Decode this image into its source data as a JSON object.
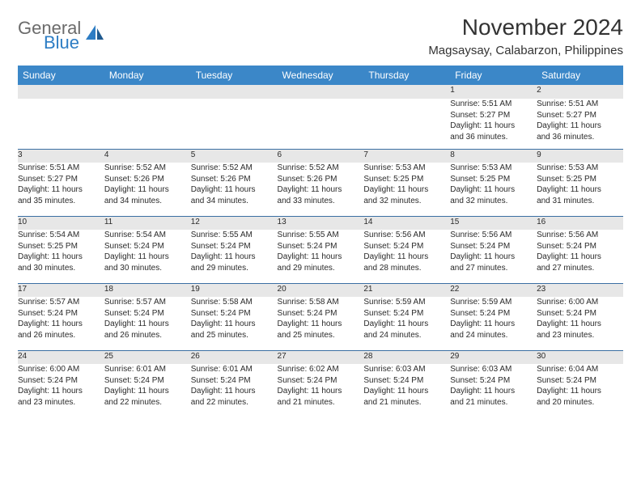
{
  "logo": {
    "line1": "General",
    "line2": "Blue"
  },
  "title": "November 2024",
  "location": "Magsaysay, Calabarzon, Philippines",
  "colors": {
    "header_bg": "#3b87c8",
    "header_text": "#ffffff",
    "daynum_bg": "#e7e7e7",
    "divider": "#3b6fa3",
    "text": "#2a2a2a",
    "logo_gray": "#6b6b6b",
    "logo_blue": "#2d7dc4"
  },
  "weekdays": [
    "Sunday",
    "Monday",
    "Tuesday",
    "Wednesday",
    "Thursday",
    "Friday",
    "Saturday"
  ],
  "weeks": [
    [
      null,
      null,
      null,
      null,
      null,
      {
        "n": "1",
        "sr": "Sunrise: 5:51 AM",
        "ss": "Sunset: 5:27 PM",
        "d1": "Daylight: 11 hours",
        "d2": "and 36 minutes."
      },
      {
        "n": "2",
        "sr": "Sunrise: 5:51 AM",
        "ss": "Sunset: 5:27 PM",
        "d1": "Daylight: 11 hours",
        "d2": "and 36 minutes."
      }
    ],
    [
      {
        "n": "3",
        "sr": "Sunrise: 5:51 AM",
        "ss": "Sunset: 5:27 PM",
        "d1": "Daylight: 11 hours",
        "d2": "and 35 minutes."
      },
      {
        "n": "4",
        "sr": "Sunrise: 5:52 AM",
        "ss": "Sunset: 5:26 PM",
        "d1": "Daylight: 11 hours",
        "d2": "and 34 minutes."
      },
      {
        "n": "5",
        "sr": "Sunrise: 5:52 AM",
        "ss": "Sunset: 5:26 PM",
        "d1": "Daylight: 11 hours",
        "d2": "and 34 minutes."
      },
      {
        "n": "6",
        "sr": "Sunrise: 5:52 AM",
        "ss": "Sunset: 5:26 PM",
        "d1": "Daylight: 11 hours",
        "d2": "and 33 minutes."
      },
      {
        "n": "7",
        "sr": "Sunrise: 5:53 AM",
        "ss": "Sunset: 5:25 PM",
        "d1": "Daylight: 11 hours",
        "d2": "and 32 minutes."
      },
      {
        "n": "8",
        "sr": "Sunrise: 5:53 AM",
        "ss": "Sunset: 5:25 PM",
        "d1": "Daylight: 11 hours",
        "d2": "and 32 minutes."
      },
      {
        "n": "9",
        "sr": "Sunrise: 5:53 AM",
        "ss": "Sunset: 5:25 PM",
        "d1": "Daylight: 11 hours",
        "d2": "and 31 minutes."
      }
    ],
    [
      {
        "n": "10",
        "sr": "Sunrise: 5:54 AM",
        "ss": "Sunset: 5:25 PM",
        "d1": "Daylight: 11 hours",
        "d2": "and 30 minutes."
      },
      {
        "n": "11",
        "sr": "Sunrise: 5:54 AM",
        "ss": "Sunset: 5:24 PM",
        "d1": "Daylight: 11 hours",
        "d2": "and 30 minutes."
      },
      {
        "n": "12",
        "sr": "Sunrise: 5:55 AM",
        "ss": "Sunset: 5:24 PM",
        "d1": "Daylight: 11 hours",
        "d2": "and 29 minutes."
      },
      {
        "n": "13",
        "sr": "Sunrise: 5:55 AM",
        "ss": "Sunset: 5:24 PM",
        "d1": "Daylight: 11 hours",
        "d2": "and 29 minutes."
      },
      {
        "n": "14",
        "sr": "Sunrise: 5:56 AM",
        "ss": "Sunset: 5:24 PM",
        "d1": "Daylight: 11 hours",
        "d2": "and 28 minutes."
      },
      {
        "n": "15",
        "sr": "Sunrise: 5:56 AM",
        "ss": "Sunset: 5:24 PM",
        "d1": "Daylight: 11 hours",
        "d2": "and 27 minutes."
      },
      {
        "n": "16",
        "sr": "Sunrise: 5:56 AM",
        "ss": "Sunset: 5:24 PM",
        "d1": "Daylight: 11 hours",
        "d2": "and 27 minutes."
      }
    ],
    [
      {
        "n": "17",
        "sr": "Sunrise: 5:57 AM",
        "ss": "Sunset: 5:24 PM",
        "d1": "Daylight: 11 hours",
        "d2": "and 26 minutes."
      },
      {
        "n": "18",
        "sr": "Sunrise: 5:57 AM",
        "ss": "Sunset: 5:24 PM",
        "d1": "Daylight: 11 hours",
        "d2": "and 26 minutes."
      },
      {
        "n": "19",
        "sr": "Sunrise: 5:58 AM",
        "ss": "Sunset: 5:24 PM",
        "d1": "Daylight: 11 hours",
        "d2": "and 25 minutes."
      },
      {
        "n": "20",
        "sr": "Sunrise: 5:58 AM",
        "ss": "Sunset: 5:24 PM",
        "d1": "Daylight: 11 hours",
        "d2": "and 25 minutes."
      },
      {
        "n": "21",
        "sr": "Sunrise: 5:59 AM",
        "ss": "Sunset: 5:24 PM",
        "d1": "Daylight: 11 hours",
        "d2": "and 24 minutes."
      },
      {
        "n": "22",
        "sr": "Sunrise: 5:59 AM",
        "ss": "Sunset: 5:24 PM",
        "d1": "Daylight: 11 hours",
        "d2": "and 24 minutes."
      },
      {
        "n": "23",
        "sr": "Sunrise: 6:00 AM",
        "ss": "Sunset: 5:24 PM",
        "d1": "Daylight: 11 hours",
        "d2": "and 23 minutes."
      }
    ],
    [
      {
        "n": "24",
        "sr": "Sunrise: 6:00 AM",
        "ss": "Sunset: 5:24 PM",
        "d1": "Daylight: 11 hours",
        "d2": "and 23 minutes."
      },
      {
        "n": "25",
        "sr": "Sunrise: 6:01 AM",
        "ss": "Sunset: 5:24 PM",
        "d1": "Daylight: 11 hours",
        "d2": "and 22 minutes."
      },
      {
        "n": "26",
        "sr": "Sunrise: 6:01 AM",
        "ss": "Sunset: 5:24 PM",
        "d1": "Daylight: 11 hours",
        "d2": "and 22 minutes."
      },
      {
        "n": "27",
        "sr": "Sunrise: 6:02 AM",
        "ss": "Sunset: 5:24 PM",
        "d1": "Daylight: 11 hours",
        "d2": "and 21 minutes."
      },
      {
        "n": "28",
        "sr": "Sunrise: 6:03 AM",
        "ss": "Sunset: 5:24 PM",
        "d1": "Daylight: 11 hours",
        "d2": "and 21 minutes."
      },
      {
        "n": "29",
        "sr": "Sunrise: 6:03 AM",
        "ss": "Sunset: 5:24 PM",
        "d1": "Daylight: 11 hours",
        "d2": "and 21 minutes."
      },
      {
        "n": "30",
        "sr": "Sunrise: 6:04 AM",
        "ss": "Sunset: 5:24 PM",
        "d1": "Daylight: 11 hours",
        "d2": "and 20 minutes."
      }
    ]
  ]
}
